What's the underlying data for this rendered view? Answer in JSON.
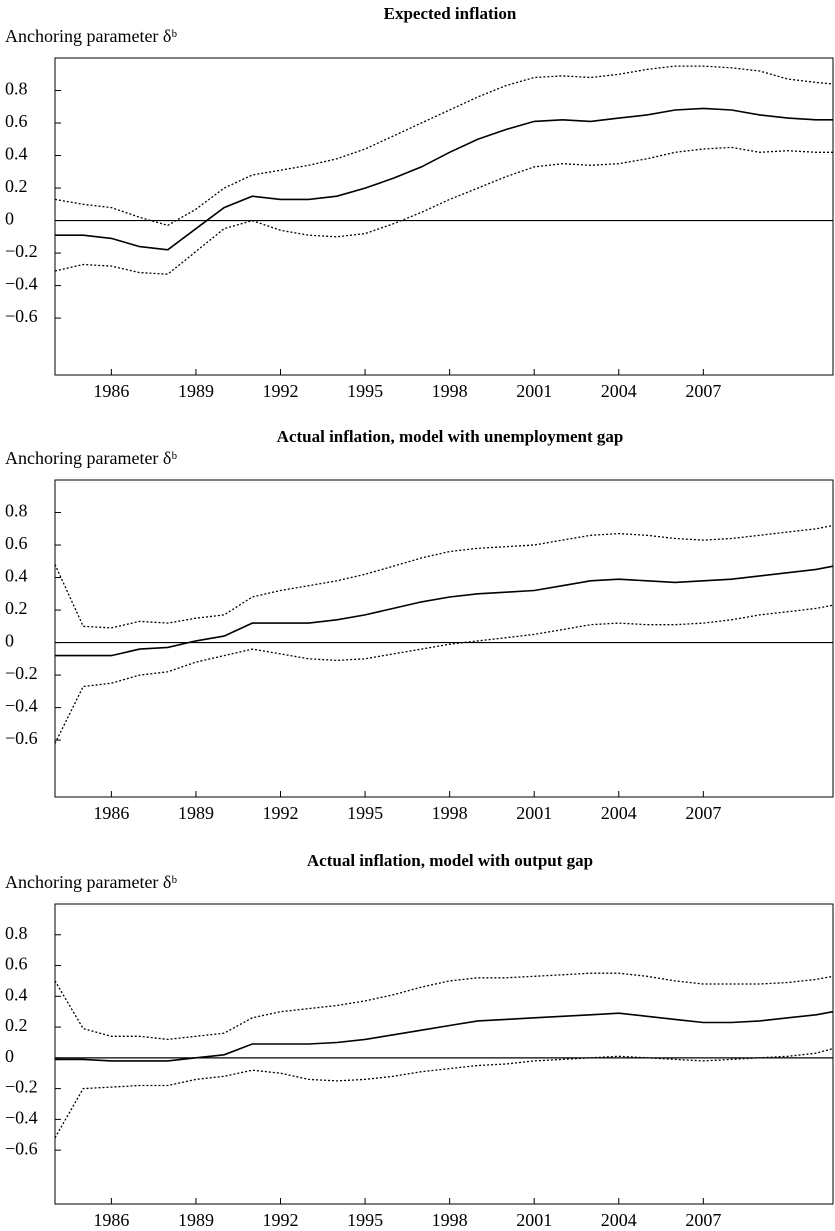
{
  "chart_data": [
    {
      "type": "line",
      "title": "Expected inflation",
      "y_label": "Anchoring parameter δᵇ",
      "x": [
        1984,
        1985,
        1986,
        1987,
        1988,
        1989,
        1990,
        1991,
        1992,
        1993,
        1994,
        1995,
        1996,
        1997,
        1998,
        1999,
        2000,
        2001,
        2002,
        2003,
        2004,
        2005,
        2006,
        2007,
        2008,
        2009,
        2010,
        2011,
        2011.6
      ],
      "series": [
        {
          "style": "solid",
          "color": "#000000",
          "values": [
            -0.09,
            -0.09,
            -0.11,
            -0.16,
            -0.18,
            -0.05,
            0.08,
            0.15,
            0.13,
            0.13,
            0.15,
            0.2,
            0.26,
            0.33,
            0.42,
            0.5,
            0.56,
            0.61,
            0.62,
            0.61,
            0.63,
            0.65,
            0.68,
            0.69,
            0.68,
            0.65,
            0.63,
            0.62,
            0.62
          ]
        },
        {
          "style": "dotted",
          "color": "#000000",
          "values": [
            0.13,
            0.1,
            0.08,
            0.02,
            -0.03,
            0.07,
            0.2,
            0.28,
            0.31,
            0.34,
            0.38,
            0.44,
            0.52,
            0.6,
            0.68,
            0.76,
            0.83,
            0.88,
            0.89,
            0.88,
            0.9,
            0.93,
            0.95,
            0.95,
            0.94,
            0.92,
            0.87,
            0.85,
            0.84
          ]
        },
        {
          "style": "dotted",
          "color": "#000000",
          "values": [
            -0.31,
            -0.27,
            -0.28,
            -0.32,
            -0.33,
            -0.19,
            -0.05,
            0.0,
            -0.06,
            -0.09,
            -0.1,
            -0.08,
            -0.02,
            0.05,
            0.13,
            0.2,
            0.27,
            0.33,
            0.35,
            0.34,
            0.35,
            0.38,
            0.42,
            0.44,
            0.45,
            0.42,
            0.43,
            0.42,
            0.42
          ]
        }
      ],
      "xlim": [
        1984,
        2011.6
      ],
      "xticks": [
        1986,
        1989,
        1992,
        1995,
        1998,
        2001,
        2004,
        2007
      ],
      "ylim": [
        -0.95,
        1.0
      ],
      "yticks": [
        0.8,
        0.6,
        0.4,
        0.2,
        0,
        {
          "value": -0.2,
          "label": "−0.2"
        },
        {
          "value": -0.4,
          "label": "−0.4"
        },
        {
          "value": -0.6,
          "label": "−0.6"
        }
      ],
      "zero_line": true
    },
    {
      "type": "line",
      "title": "Actual inflation, model with unemployment gap",
      "y_label": "Anchoring parameter δᵇ",
      "x": [
        1984,
        1985,
        1986,
        1987,
        1988,
        1989,
        1990,
        1991,
        1992,
        1993,
        1994,
        1995,
        1996,
        1997,
        1998,
        1999,
        2000,
        2001,
        2002,
        2003,
        2004,
        2005,
        2006,
        2007,
        2008,
        2009,
        2010,
        2011,
        2011.6
      ],
      "series": [
        {
          "style": "solid",
          "color": "#000000",
          "values": [
            -0.08,
            -0.08,
            -0.08,
            -0.04,
            -0.03,
            0.01,
            0.04,
            0.12,
            0.12,
            0.12,
            0.14,
            0.17,
            0.21,
            0.25,
            0.28,
            0.3,
            0.31,
            0.32,
            0.35,
            0.38,
            0.39,
            0.38,
            0.37,
            0.38,
            0.39,
            0.41,
            0.43,
            0.45,
            0.47
          ]
        },
        {
          "style": "dotted",
          "color": "#000000",
          "values": [
            0.48,
            0.1,
            0.09,
            0.13,
            0.12,
            0.15,
            0.17,
            0.28,
            0.32,
            0.35,
            0.38,
            0.42,
            0.47,
            0.52,
            0.56,
            0.58,
            0.59,
            0.6,
            0.63,
            0.66,
            0.67,
            0.66,
            0.64,
            0.63,
            0.64,
            0.66,
            0.68,
            0.7,
            0.72
          ]
        },
        {
          "style": "dotted",
          "color": "#000000",
          "values": [
            -0.62,
            -0.27,
            -0.25,
            -0.2,
            -0.18,
            -0.12,
            -0.08,
            -0.04,
            -0.07,
            -0.1,
            -0.11,
            -0.1,
            -0.07,
            -0.04,
            -0.01,
            0.01,
            0.03,
            0.05,
            0.08,
            0.11,
            0.12,
            0.11,
            0.11,
            0.12,
            0.14,
            0.17,
            0.19,
            0.21,
            0.23
          ]
        }
      ],
      "xlim": [
        1984,
        2011.6
      ],
      "xticks": [
        1986,
        1989,
        1992,
        1995,
        1998,
        2001,
        2004,
        2007
      ],
      "ylim": [
        -0.95,
        1.0
      ],
      "yticks": [
        0.8,
        0.6,
        0.4,
        0.2,
        0,
        {
          "value": -0.2,
          "label": "−0.2"
        },
        {
          "value": -0.4,
          "label": "−0.4"
        },
        {
          "value": -0.6,
          "label": "−0.6"
        }
      ],
      "zero_line": true
    },
    {
      "type": "line",
      "title": "Actual inflation, model with output gap",
      "y_label": "Anchoring parameter δᵇ",
      "x": [
        1984,
        1985,
        1986,
        1987,
        1988,
        1989,
        1990,
        1991,
        1992,
        1993,
        1994,
        1995,
        1996,
        1997,
        1998,
        1999,
        2000,
        2001,
        2002,
        2003,
        2004,
        2005,
        2006,
        2007,
        2008,
        2009,
        2010,
        2011,
        2011.6
      ],
      "series": [
        {
          "style": "solid",
          "color": "#000000",
          "values": [
            -0.01,
            -0.01,
            -0.02,
            -0.02,
            -0.02,
            0.0,
            0.02,
            0.09,
            0.09,
            0.09,
            0.1,
            0.12,
            0.15,
            0.18,
            0.21,
            0.24,
            0.25,
            0.26,
            0.27,
            0.28,
            0.29,
            0.27,
            0.25,
            0.23,
            0.23,
            0.24,
            0.26,
            0.28,
            0.3
          ]
        },
        {
          "style": "dotted",
          "color": "#000000",
          "values": [
            0.5,
            0.19,
            0.14,
            0.14,
            0.12,
            0.14,
            0.16,
            0.26,
            0.3,
            0.32,
            0.34,
            0.37,
            0.41,
            0.46,
            0.5,
            0.52,
            0.52,
            0.53,
            0.54,
            0.55,
            0.55,
            0.53,
            0.5,
            0.48,
            0.48,
            0.48,
            0.49,
            0.51,
            0.53
          ]
        },
        {
          "style": "dotted",
          "color": "#000000",
          "values": [
            -0.52,
            -0.2,
            -0.19,
            -0.18,
            -0.18,
            -0.14,
            -0.12,
            -0.08,
            -0.1,
            -0.14,
            -0.15,
            -0.14,
            -0.12,
            -0.09,
            -0.07,
            -0.05,
            -0.04,
            -0.02,
            -0.01,
            0.0,
            0.01,
            0.0,
            -0.01,
            -0.02,
            -0.01,
            0.0,
            0.01,
            0.03,
            0.06
          ]
        }
      ],
      "xlim": [
        1984,
        2011.6
      ],
      "xticks": [
        1986,
        1989,
        1992,
        1995,
        1998,
        2001,
        2004,
        2007
      ],
      "ylim": [
        -0.95,
        1.0
      ],
      "yticks": [
        0.8,
        0.6,
        0.4,
        0.2,
        0,
        {
          "value": -0.2,
          "label": "−0.2"
        },
        {
          "value": -0.4,
          "label": "−0.4"
        },
        {
          "value": -0.6,
          "label": "−0.6"
        }
      ],
      "zero_line": true
    }
  ]
}
